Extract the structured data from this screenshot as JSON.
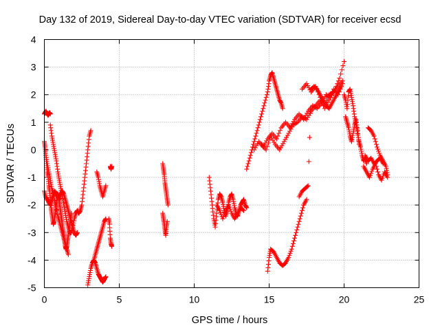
{
  "chart_data": {
    "type": "scatter",
    "title": "Day 132 of 2019, Sidereal Day-to-day VTEC variation (SDTVAR) for receiver ecsd",
    "xlabel": "GPS time / hours",
    "ylabel": "SDTVAR / TECUs",
    "xlim": [
      0,
      25
    ],
    "ylim": [
      -5,
      4
    ],
    "xticks": [
      "0",
      "5",
      "10",
      "15",
      "20",
      "25"
    ],
    "yticks": [
      "-5",
      "-4",
      "-3",
      "-2",
      "-1",
      "0",
      "1",
      "2",
      "3",
      "4"
    ],
    "grid": true,
    "marker": "+",
    "color": "#ff0000",
    "series": [
      {
        "x": [
          0.0,
          0.05,
          0.1,
          0.15,
          0.2,
          0.25,
          0.3,
          0.35,
          0.4
        ],
        "y": [
          1.3,
          1.35,
          1.4,
          1.35,
          1.3,
          1.25,
          1.3,
          1.35,
          1.3
        ]
      },
      {
        "x": [
          0.4,
          0.5,
          0.6,
          0.7,
          0.8,
          0.9,
          1.0,
          1.1,
          1.2,
          1.3,
          1.4,
          1.5,
          1.6,
          1.7,
          1.8,
          1.9,
          2.0,
          2.1,
          2.2,
          2.3,
          2.4,
          2.5,
          2.6,
          2.7,
          2.8,
          2.9,
          3.0,
          3.1
        ],
        "y": [
          0.9,
          0.5,
          0.2,
          -0.1,
          -0.4,
          -0.8,
          -1.1,
          -1.4,
          -1.7,
          -2.0,
          -2.3,
          -2.6,
          -2.8,
          -3.0,
          -3.0,
          -2.8,
          -2.5,
          -2.3,
          -2.2,
          -2.3,
          -2.2,
          -2.0,
          -1.5,
          -1.0,
          -0.5,
          0.0,
          0.5,
          0.7
        ]
      },
      {
        "x": [
          0.0,
          0.05,
          0.1,
          0.15,
          0.2,
          0.25,
          0.3,
          0.35,
          0.4,
          0.45,
          0.5,
          0.55,
          0.6,
          0.65,
          0.7,
          0.75,
          0.8,
          0.85,
          0.9,
          0.95,
          1.0,
          1.05,
          1.1,
          1.15,
          1.2,
          1.25,
          1.3,
          1.35,
          1.4,
          1.45,
          1.5,
          1.55,
          1.6,
          1.65,
          1.7,
          1.75,
          1.8
        ],
        "y": [
          0.3,
          0.1,
          -0.2,
          -0.5,
          -0.8,
          -1.0,
          -1.3,
          -1.5,
          -1.8,
          -2.1,
          -2.3,
          -2.5,
          -2.7,
          -2.6,
          -2.4,
          -2.2,
          -2.0,
          -1.8,
          -1.6,
          -1.7,
          -1.9,
          -2.1,
          -2.3,
          -2.5,
          -2.7,
          -2.9,
          -3.1,
          -3.3,
          -3.5,
          -3.6,
          -3.5,
          -3.3,
          -3.1,
          -2.9,
          -2.7,
          -2.5,
          -2.3
        ]
      },
      {
        "x": [
          0.0,
          0.1,
          0.2,
          0.3,
          0.4,
          0.5,
          0.6,
          0.7,
          0.8,
          0.9,
          1.0,
          1.1,
          1.2,
          1.3,
          1.4,
          1.5,
          1.6,
          1.7,
          1.8,
          1.9,
          2.0,
          2.1,
          2.2
        ],
        "y": [
          -1.5,
          -1.7,
          -1.8,
          -1.9,
          -2.0,
          -1.8,
          -1.6,
          -1.5,
          -1.6,
          -1.7,
          -1.8,
          -1.6,
          -1.5,
          -1.6,
          -1.8,
          -2.0,
          -2.2,
          -2.4,
          -2.6,
          -2.8,
          -3.0,
          -3.1,
          -3.0
        ]
      },
      {
        "x": [
          0.1,
          0.2,
          0.3,
          0.4,
          0.5,
          0.6,
          0.7,
          0.8,
          0.9,
          1.0,
          1.1,
          1.2,
          1.3,
          1.4,
          1.5,
          1.6
        ],
        "y": [
          -0.2,
          -0.5,
          -0.8,
          -1.1,
          -1.4,
          -1.6,
          -1.9,
          -2.1,
          -2.4,
          -2.6,
          -2.8,
          -3.0,
          -3.2,
          -3.4,
          -3.6,
          -3.8
        ]
      },
      {
        "x": [
          2.9,
          3.0,
          3.1,
          3.2,
          3.3,
          3.4,
          3.5,
          3.6,
          3.7,
          3.8,
          3.9,
          4.0,
          4.1
        ],
        "y": [
          -4.9,
          -4.6,
          -4.3,
          -4.1,
          -4.0,
          -4.1,
          -4.3,
          -4.5,
          -4.6,
          -4.7,
          -4.8,
          -4.7,
          -4.6
        ]
      },
      {
        "x": [
          3.3,
          3.4,
          3.5,
          3.6,
          3.7,
          3.8,
          3.9,
          4.0,
          4.1
        ],
        "y": [
          -4.0,
          -3.8,
          -3.6,
          -3.4,
          -3.2,
          -3.0,
          -2.8,
          -2.6,
          -2.5
        ]
      },
      {
        "x": [
          3.5,
          3.6,
          3.7,
          3.8,
          3.9,
          4.0,
          4.1
        ],
        "y": [
          -0.8,
          -1.0,
          -1.3,
          -1.5,
          -1.7,
          -1.5,
          -1.3
        ]
      },
      {
        "x": [
          4.4,
          4.45,
          4.5
        ],
        "y": [
          -0.6,
          -0.7,
          -0.6
        ]
      },
      {
        "x": [
          4.3,
          4.35,
          4.4,
          4.45,
          4.5
        ],
        "y": [
          -2.5,
          -2.7,
          -3.2,
          -3.4,
          -3.5
        ]
      },
      {
        "x": [
          7.9,
          7.95,
          8.0,
          8.05,
          8.1,
          8.15,
          8.2,
          8.25
        ],
        "y": [
          -0.5,
          -0.7,
          -0.9,
          -1.2,
          -1.4,
          -1.6,
          -1.8,
          -2.0
        ]
      },
      {
        "x": [
          7.9,
          7.95,
          8.0,
          8.05,
          8.1,
          8.15,
          8.2
        ],
        "y": [
          -2.3,
          -2.5,
          -2.7,
          -2.9,
          -3.1,
          -2.8,
          -2.6
        ]
      },
      {
        "x": [
          11.0,
          11.1,
          11.2,
          11.3,
          11.4,
          11.5,
          11.6,
          11.7,
          11.8,
          11.9,
          12.0,
          12.1,
          12.2,
          12.3,
          12.4,
          12.5,
          12.6,
          12.7,
          12.8,
          12.9,
          13.0,
          13.1,
          13.2,
          13.3,
          13.4,
          13.5
        ],
        "y": [
          -1.0,
          -1.5,
          -2.0,
          -2.5,
          -2.8,
          -2.3,
          -1.8,
          -1.6,
          -1.7,
          -1.9,
          -2.2,
          -2.4,
          -2.2,
          -1.9,
          -1.7,
          -1.6,
          -1.8,
          -2.1,
          -2.3,
          -2.4,
          -2.2,
          -2.0,
          -1.9,
          -1.8,
          -2.0,
          -2.1
        ]
      },
      {
        "x": [
          11.5,
          11.7,
          11.9,
          12.1,
          12.3,
          12.5,
          12.7,
          12.9,
          13.1,
          13.3
        ],
        "y": [
          -2.0,
          -2.2,
          -2.5,
          -2.2,
          -2.0,
          -2.3,
          -2.5,
          -2.3,
          -2.1,
          -2.2
        ]
      },
      {
        "x": [
          13.5,
          13.7,
          13.9,
          14.1,
          14.3,
          14.5,
          14.7,
          14.9,
          15.0,
          15.1,
          15.2,
          15.3,
          15.4,
          15.5,
          15.6,
          15.7,
          15.8,
          15.9
        ],
        "y": [
          -0.7,
          -0.3,
          0.1,
          0.5,
          0.9,
          1.3,
          1.7,
          2.1,
          2.5,
          2.7,
          2.8,
          2.6,
          2.4,
          2.2,
          2.0,
          1.8,
          1.7,
          1.5
        ]
      },
      {
        "x": [
          14.0,
          14.3,
          14.6,
          14.9,
          15.2,
          15.5,
          15.8,
          16.1,
          16.4,
          16.7,
          17.0,
          17.3,
          17.6,
          17.9,
          18.2,
          18.5,
          18.8,
          19.1,
          19.4,
          19.7,
          20.0
        ],
        "y": [
          0.0,
          0.3,
          0.1,
          0.4,
          0.6,
          0.4,
          0.8,
          1.0,
          0.8,
          1.1,
          1.3,
          1.1,
          1.4,
          1.6,
          1.5,
          1.7,
          2.0,
          1.9,
          2.2,
          2.6,
          3.2
        ]
      },
      {
        "x": [
          14.5,
          14.8,
          15.1,
          15.4,
          15.7,
          16.0,
          16.3,
          16.6,
          16.9,
          17.2,
          17.5,
          17.8,
          18.1,
          18.4,
          18.7,
          19.0,
          19.3,
          19.6,
          19.9
        ],
        "y": [
          0.2,
          0.0,
          0.5,
          0.2,
          0.0,
          0.3,
          0.6,
          0.9,
          1.0,
          1.2,
          1.1,
          1.4,
          1.6,
          1.8,
          1.6,
          2.0,
          2.1,
          2.3,
          2.5
        ]
      },
      {
        "x": [
          14.9,
          15.0,
          15.1,
          15.3,
          15.5,
          15.7,
          15.9,
          16.1,
          16.3,
          16.5,
          16.7,
          16.9,
          17.1,
          17.3,
          17.5
        ],
        "y": [
          -4.4,
          -3.9,
          -3.6,
          -3.7,
          -3.9,
          -4.1,
          -4.2,
          -4.1,
          -3.9,
          -3.6,
          -3.2,
          -2.8,
          -2.4,
          -2.0,
          -1.8
        ]
      },
      {
        "x": [
          17.0,
          17.2,
          17.4,
          17.6,
          17.8,
          18.0,
          18.2,
          18.4,
          18.6,
          18.8,
          19.0,
          19.2,
          19.4,
          19.6,
          19.8
        ],
        "y": [
          -1.7,
          -1.5,
          -1.4,
          -1.3,
          2.2,
          2.3,
          2.2,
          2.0,
          1.8,
          1.6,
          1.5,
          1.7,
          1.9,
          2.1,
          2.3
        ]
      },
      {
        "x": [
          17.2,
          17.5,
          17.8,
          18.1,
          18.4,
          18.7,
          19.0,
          19.3,
          19.6,
          19.9
        ],
        "y": [
          2.2,
          2.4,
          2.1,
          2.3,
          1.9,
          1.5,
          1.8,
          2.2,
          2.0,
          2.4
        ]
      },
      {
        "x": [
          20.0,
          20.1,
          20.2,
          20.3,
          20.4,
          20.5,
          20.6,
          20.7,
          20.8,
          20.9,
          21.0,
          21.1,
          21.2,
          21.3,
          21.4,
          21.5
        ],
        "y": [
          2.0,
          1.8,
          1.5,
          2.1,
          2.2,
          1.9,
          1.6,
          1.2,
          0.9,
          0.6,
          0.3,
          0.1,
          -0.2,
          -0.4,
          -0.3,
          -0.5
        ]
      },
      {
        "x": [
          20.1,
          20.2,
          20.3,
          20.4,
          20.5,
          20.6,
          20.7,
          20.8,
          20.9,
          21.0
        ],
        "y": [
          1.2,
          1.0,
          0.8,
          0.5,
          0.3,
          0.6,
          0.9,
          1.1,
          0.7,
          0.2
        ]
      },
      {
        "x": [
          21.3,
          21.5,
          21.7,
          21.9,
          22.1,
          22.3,
          22.5,
          22.7,
          22.9
        ],
        "y": [
          -0.6,
          -0.8,
          -1.0,
          -0.7,
          -0.5,
          -0.9,
          -1.1,
          -0.8,
          -1.0
        ]
      },
      {
        "x": [
          21.6,
          21.8,
          22.0,
          22.2,
          22.4,
          22.6,
          22.8,
          22.9
        ],
        "y": [
          0.8,
          0.7,
          0.5,
          0.1,
          -0.2,
          -0.4,
          -0.6,
          -0.9
        ]
      },
      {
        "x": [
          21.4,
          21.6,
          21.8,
          22.0,
          22.2,
          22.4,
          22.6
        ],
        "y": [
          -0.2,
          -0.4,
          -0.3,
          -0.5,
          -0.4,
          -0.3,
          -0.5
        ]
      }
    ]
  }
}
